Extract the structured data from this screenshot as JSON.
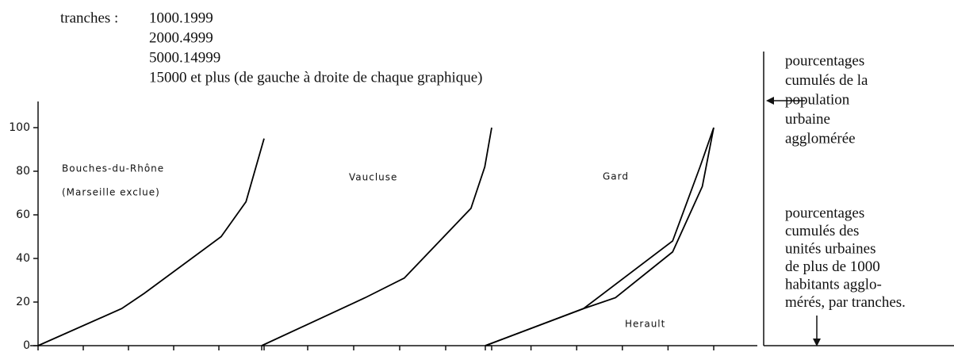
{
  "legend": {
    "label": "tranches :",
    "items": [
      "1000.1999",
      "2000.4999",
      "5000.14999",
      "15000 et plus (de gauche à droite de chaque graphique)"
    ]
  },
  "annotations": {
    "top": [
      "pourcentages",
      "cumulés de la",
      "population",
      "urbaine",
      "agglomérée"
    ],
    "bottom": [
      "pourcentages",
      "cumulés des",
      "unités urbaines",
      "de plus de 1000",
      "habitants agglo-",
      "mérés, par tranches."
    ]
  },
  "chart_data": [
    {
      "type": "line",
      "xlim": [
        0,
        100
      ],
      "ylim": [
        0,
        100
      ],
      "yticks": [
        0,
        20,
        40,
        60,
        80,
        100
      ],
      "xticks": [
        0,
        20,
        40,
        60,
        80,
        100
      ],
      "series": [
        {
          "name": "Bouches-du-Rhône",
          "note": "(Marseille exclue)",
          "color": "#000000",
          "x": [
            0,
            37,
            47,
            81,
            92,
            100
          ],
          "values": [
            0,
            17,
            24,
            50,
            66,
            95
          ]
        }
      ]
    },
    {
      "type": "line",
      "xlim": [
        0,
        100
      ],
      "ylim": [
        0,
        100
      ],
      "xticks": [
        0,
        20,
        40,
        60,
        80,
        100
      ],
      "series": [
        {
          "name": "Vaucluse",
          "color": "#000000",
          "x": [
            0,
            45,
            62,
            91,
            97,
            100
          ],
          "values": [
            0,
            22,
            31,
            63,
            82,
            100
          ]
        }
      ]
    },
    {
      "type": "line",
      "xlim": [
        0,
        100
      ],
      "ylim": [
        0,
        100
      ],
      "xticks": [
        0,
        20,
        40,
        60,
        80,
        100
      ],
      "series": [
        {
          "name": "Gard",
          "color": "#000000",
          "x": [
            0,
            43,
            82,
            94,
            100
          ],
          "values": [
            0,
            17,
            48,
            82,
            100
          ]
        },
        {
          "name": "Herault",
          "color": "#000000",
          "x": [
            0,
            43,
            57,
            82,
            95,
            100
          ],
          "values": [
            0,
            17,
            22,
            43,
            73,
            100
          ]
        }
      ]
    }
  ]
}
